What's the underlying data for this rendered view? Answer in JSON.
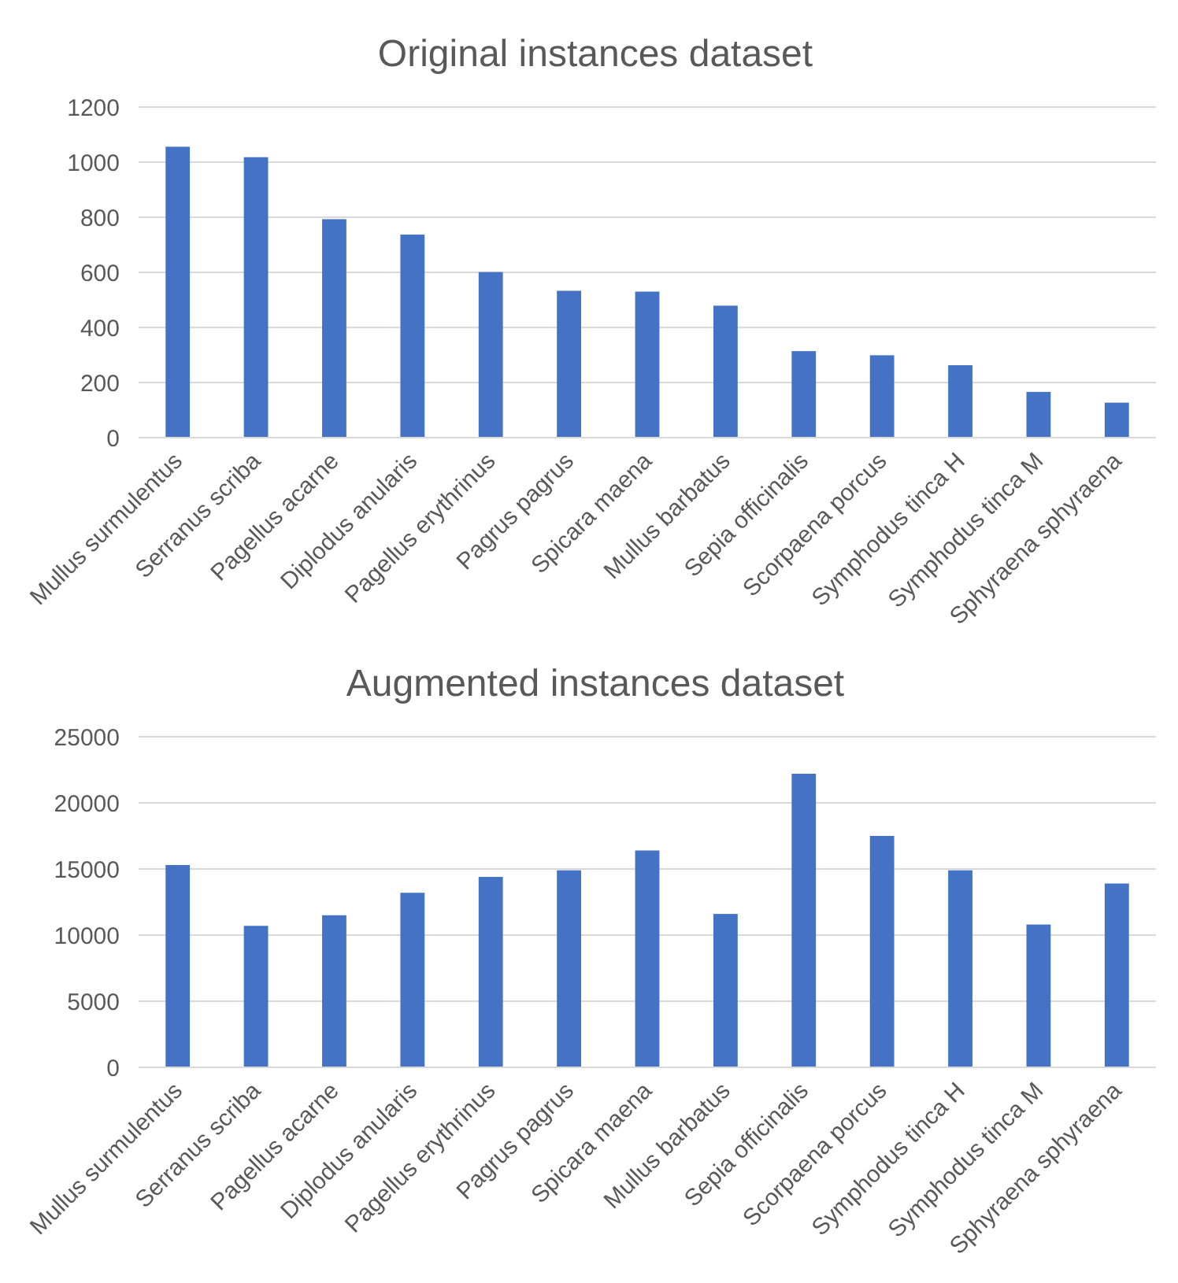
{
  "chart_data": [
    {
      "type": "bar",
      "title": "Original instances dataset",
      "categories": [
        "Mullus surmulentus",
        "Serranus scriba",
        "Pagellus acarne",
        "Diplodus anularis",
        "Pagellus erythrinus",
        "Pagrus pagrus",
        "Spicara maena",
        "Mullus barbatus",
        "Sepia officinalis",
        "Scorpaena porcus",
        "Symphodus tinca H",
        "Symphodus tinca M",
        "Sphyraena sphyraena"
      ],
      "values": [
        1056,
        1018,
        793,
        737,
        601,
        533,
        530,
        479,
        314,
        299,
        263,
        166,
        127
      ],
      "color": "#4472c4",
      "ylim": [
        0,
        1200
      ],
      "yticks": [
        0,
        200,
        400,
        600,
        800,
        1000,
        1200
      ],
      "grid": "y"
    },
    {
      "type": "bar",
      "title": "Augmented instances dataset",
      "categories": [
        "Mullus surmulentus",
        "Serranus scriba",
        "Pagellus acarne",
        "Diplodus anularis",
        "Pagellus erythrinus",
        "Pagrus pagrus",
        "Spicara maena",
        "Mullus barbatus",
        "Sepia officinalis",
        "Scorpaena porcus",
        "Symphodus tinca H",
        "Symphodus tinca M",
        "Sphyraena sphyraena"
      ],
      "values": [
        15300,
        10700,
        11500,
        13200,
        14400,
        14900,
        16400,
        11600,
        22200,
        17500,
        14900,
        10800,
        13900
      ],
      "color": "#4472c4",
      "ylim": [
        0,
        25000
      ],
      "yticks": [
        0,
        5000,
        10000,
        15000,
        20000,
        25000
      ],
      "grid": "y"
    }
  ]
}
